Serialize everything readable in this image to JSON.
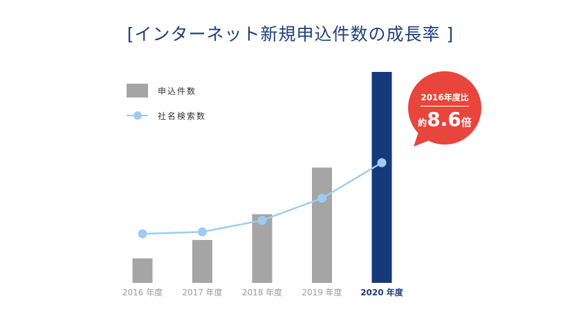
{
  "chart_data": {
    "type": "bar",
    "title": "[インターネット新規申込件数の成長率 ]",
    "categories": [
      "2016 年度",
      "2017 年度",
      "2018 年度",
      "2019 年度",
      "2020 年度"
    ],
    "series": [
      {
        "name": "申込件数",
        "type": "bar",
        "values": [
          1.0,
          1.75,
          2.8,
          4.7,
          8.6
        ]
      },
      {
        "name": "社名検索数",
        "type": "line",
        "values": [
          2.0,
          2.08,
          2.55,
          3.45,
          4.9
        ]
      }
    ],
    "ylim": [
      0,
      8.6
    ],
    "grid": false,
    "legend_position": "top-left",
    "colors": {
      "bar": "#a5a5a5",
      "bar_highlight": "#143a7a",
      "line": "#9ecbf2",
      "label": "#9b9b9b",
      "label_highlight": "#1f3f7a"
    },
    "highlight_index": 4,
    "callout": {
      "line1": "2016年度比",
      "prefix": "約",
      "value": "8.6",
      "suffix": "倍",
      "color": "#e8453c"
    }
  }
}
